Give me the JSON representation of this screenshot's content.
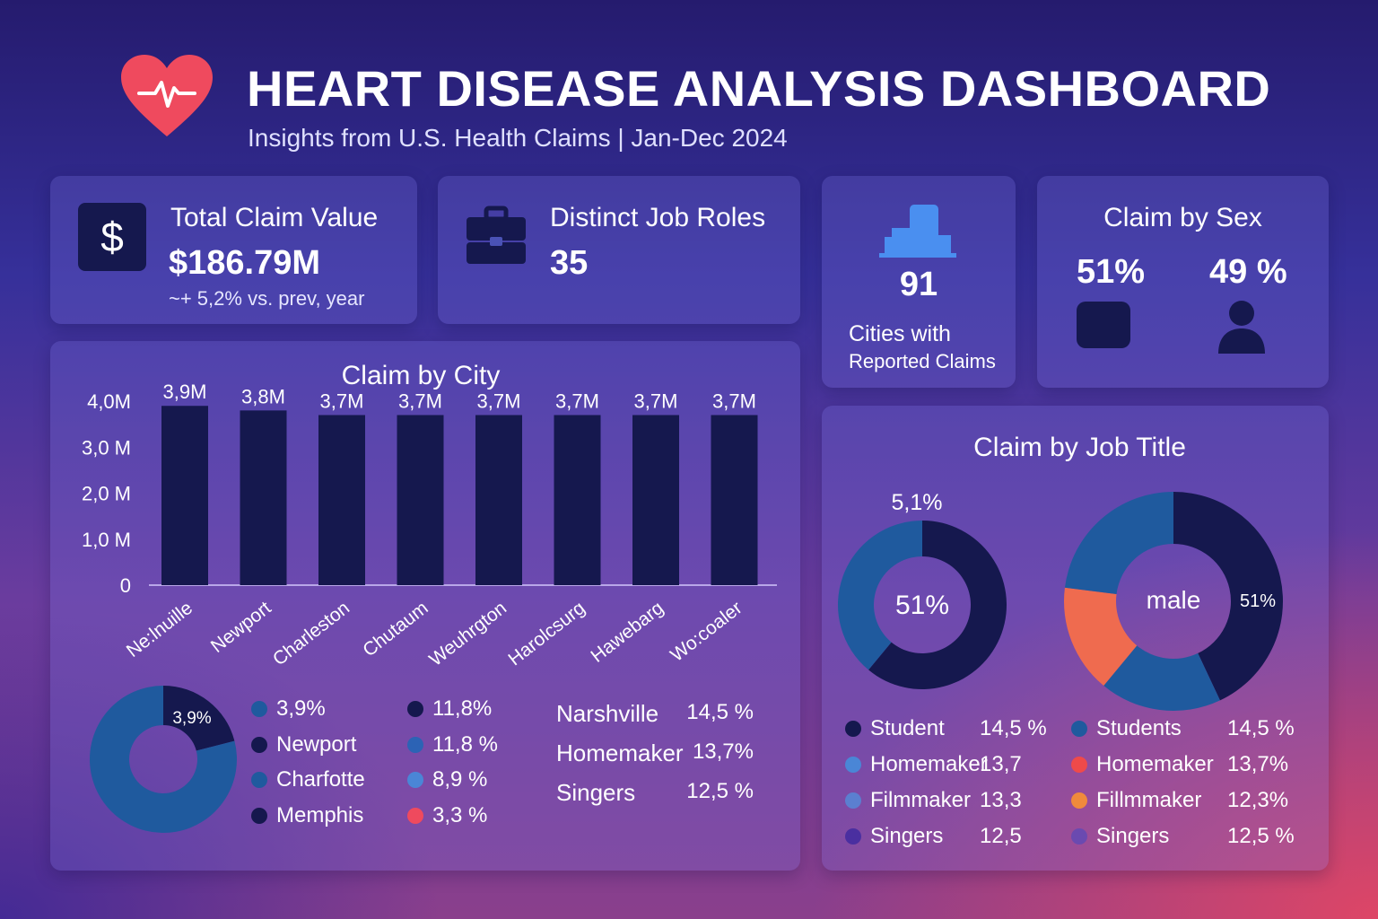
{
  "header": {
    "title": "HEART DISEASE ANALYSIS DASHBOARD",
    "subtitle": "Insights from U.S. Health Claims | Jan-Dec 2024"
  },
  "kpis": {
    "total_claim": {
      "label": "Total Claim Value",
      "value": "$186.79M",
      "delta": "~+ 5,2% vs. prev, year",
      "icon": "dollar-icon"
    },
    "job_roles": {
      "label": "Distinct Job Roles",
      "value": "35",
      "icon": "briefcase-icon"
    },
    "cities": {
      "value": "91",
      "label_line1": "Cities with",
      "label_line2": "Reported Claims",
      "icon": "city-buildings-icon"
    },
    "sex": {
      "title": "Claim by Sex",
      "female_pct": "51%",
      "male_pct": "49 %",
      "icons": [
        "female-icon",
        "male-person-icon"
      ]
    }
  },
  "colors": {
    "bar": "#15184e",
    "navy": "#15184e",
    "blue": "#1f5a9e",
    "orange": "#ef6b4f"
  },
  "chart_data": [
    {
      "type": "bar",
      "title": "Claim by City",
      "categories": [
        "Ne:lnuille",
        "Newport",
        "Charleston",
        "Chutaum",
        "Weuhrgton",
        "Harolcsurg",
        "Hawebarg",
        "Wo:coaler"
      ],
      "values": [
        3.9,
        3.8,
        3.7,
        3.7,
        3.7,
        3.7,
        3.7,
        3.7
      ],
      "value_labels": [
        "3,9M",
        "3,8M",
        "3,7M",
        "3,7M",
        "3,7M",
        "3,7M",
        "3,7M",
        "3,7M"
      ],
      "y_ticks": [
        "4,0M",
        "3,0 M",
        "2,0 M",
        "1,0 M",
        "0"
      ],
      "y_tick_values": [
        4,
        3,
        2,
        1,
        0
      ],
      "ylim": [
        0,
        4.1
      ]
    },
    {
      "type": "pie",
      "subtype": "donut",
      "slice_label": "3,9%",
      "values": [
        21,
        79
      ],
      "colors": [
        "#15184e",
        "#1f5a9e"
      ],
      "legend_left": [
        {
          "label": "3,9%",
          "color": "#1f5a9e"
        },
        {
          "label": "Newport",
          "color": "#15184e"
        },
        {
          "label": "Charfotte",
          "color": "#1f5a9e"
        },
        {
          "label": "Memphis",
          "color": "#15184e"
        }
      ],
      "legend_mid": [
        {
          "label": "11,8%",
          "color": "#15184e"
        },
        {
          "label": "11,8 %",
          "color": "#2c63b5"
        },
        {
          "label": "8,9 %",
          "color": "#4a86d6"
        },
        {
          "label": "3,3 %",
          "color": "#ef4a5e"
        }
      ],
      "table": [
        {
          "name": "Narshville",
          "value": "14,5 %"
        },
        {
          "name": "Homemaker",
          "value": "13,7%"
        },
        {
          "name": "Singers",
          "value": "12,5 %"
        }
      ]
    },
    {
      "type": "pie",
      "subtype": "donut",
      "title": "Claim by Job Title",
      "outer_label": "5,1%",
      "center_label": "51%",
      "values": [
        61,
        39
      ],
      "colors": [
        "#15184e",
        "#1f5a9e"
      ],
      "legend": [
        {
          "label": "Student",
          "value": "14,5 %",
          "color": "#15184e"
        },
        {
          "label": "Homemaker",
          "value": "13,7",
          "color": "#4a86d6"
        },
        {
          "label": "Filmmaker",
          "value": "13,3",
          "color": "#5b7fd0"
        },
        {
          "label": "Singers",
          "value": "12,5",
          "color": "#4a2fa0"
        }
      ]
    },
    {
      "type": "pie",
      "subtype": "donut",
      "center_label": "male",
      "slice_label": "51%",
      "values": [
        43,
        18,
        16,
        23
      ],
      "colors": [
        "#15184e",
        "#1f5a9e",
        "#ef6b4f",
        "#1f5a9e"
      ],
      "legend": [
        {
          "label": "Students",
          "value": "14,5 %",
          "color": "#1f5a9e"
        },
        {
          "label": "Homemaker",
          "value": "13,7%",
          "color": "#ef4a4a"
        },
        {
          "label": "Fillmmaker",
          "value": "12,3%",
          "color": "#f08a3c"
        },
        {
          "label": "Singers",
          "value": "12,5 %",
          "color": "#6a4ab0"
        }
      ]
    }
  ]
}
